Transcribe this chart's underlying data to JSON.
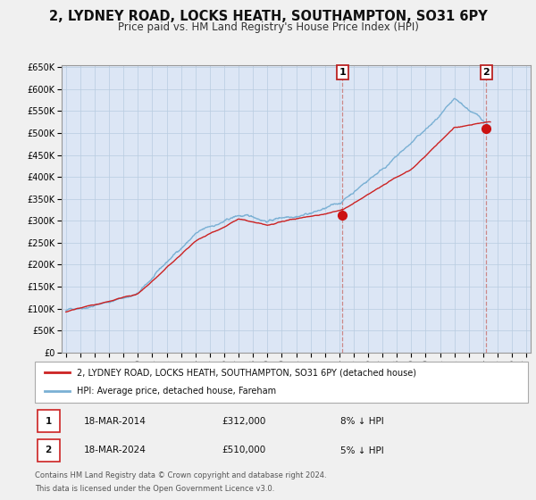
{
  "title": "2, LYDNEY ROAD, LOCKS HEATH, SOUTHAMPTON, SO31 6PY",
  "subtitle": "Price paid vs. HM Land Registry's House Price Index (HPI)",
  "background_color": "#f0f0f0",
  "plot_bg_color": "#dce6f5",
  "ylim": [
    0,
    650000
  ],
  "yticks": [
    0,
    50000,
    100000,
    150000,
    200000,
    250000,
    300000,
    350000,
    400000,
    450000,
    500000,
    550000,
    600000,
    650000
  ],
  "sale1_date": 2014.21,
  "sale1_price": 312000,
  "sale1_label": "1",
  "sale2_date": 2024.21,
  "sale2_price": 510000,
  "sale2_label": "2",
  "vline1_color": "#cc8888",
  "vline2_color": "#cc8888",
  "red_line_color": "#cc2222",
  "blue_line_color": "#7ab0d4",
  "dot_color": "#cc1111",
  "legend_label_red": "2, LYDNEY ROAD, LOCKS HEATH, SOUTHAMPTON, SO31 6PY (detached house)",
  "legend_label_blue": "HPI: Average price, detached house, Fareham",
  "table_row1": [
    "1",
    "18-MAR-2014",
    "£312,000",
    "8% ↓ HPI"
  ],
  "table_row2": [
    "2",
    "18-MAR-2024",
    "£510,000",
    "5% ↓ HPI"
  ],
  "footer1": "Contains HM Land Registry data © Crown copyright and database right 2024.",
  "footer2": "This data is licensed under the Open Government Licence v3.0.",
  "grid_color": "#b8cce0",
  "title_fontsize": 10.5,
  "subtitle_fontsize": 8.5
}
